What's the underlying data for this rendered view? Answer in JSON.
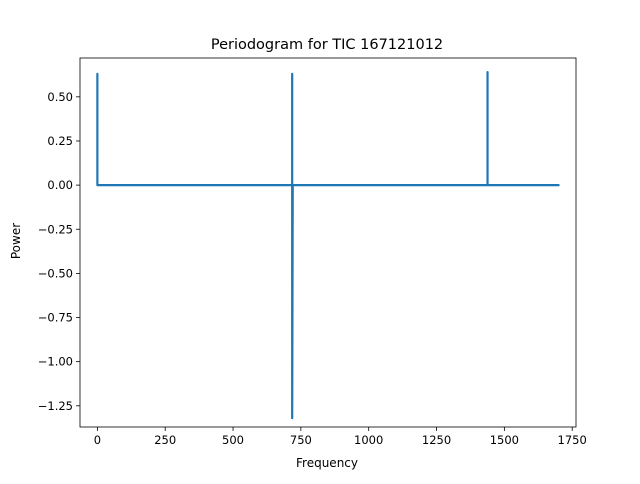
{
  "chart_data": {
    "type": "line",
    "title": "Periodogram for TIC 167121012",
    "xlabel": "Frequency",
    "ylabel": "Power",
    "xlim": [
      -64,
      1764
    ],
    "ylim": [
      -1.37,
      0.72
    ],
    "xticks": [
      0,
      250,
      500,
      750,
      1000,
      1250,
      1500,
      1750
    ],
    "xtick_labels": [
      "0",
      "250",
      "500",
      "750",
      "1000",
      "1250",
      "1500",
      "1750"
    ],
    "yticks": [
      0.5,
      0.25,
      0.0,
      -0.25,
      -0.5,
      -0.75,
      -1.0,
      -1.25
    ],
    "ytick_labels": [
      "0.50",
      "0.25",
      "0.00",
      "−0.25",
      "−0.50",
      "−0.75",
      "−1.00",
      "−1.25"
    ],
    "grid": false,
    "series": [
      {
        "color": "#1f77b4",
        "x": [
          0,
          0,
          0,
          0,
          2,
          715,
          718,
          718,
          718,
          720,
          1438,
          1438,
          1438,
          1440,
          1700
        ],
        "y": [
          0.0,
          0.63,
          0.0,
          0.0,
          0.0,
          0.0,
          0.0,
          0.63,
          -1.32,
          0.0,
          0.0,
          0.64,
          0.0,
          0.0,
          0.0
        ]
      }
    ]
  }
}
